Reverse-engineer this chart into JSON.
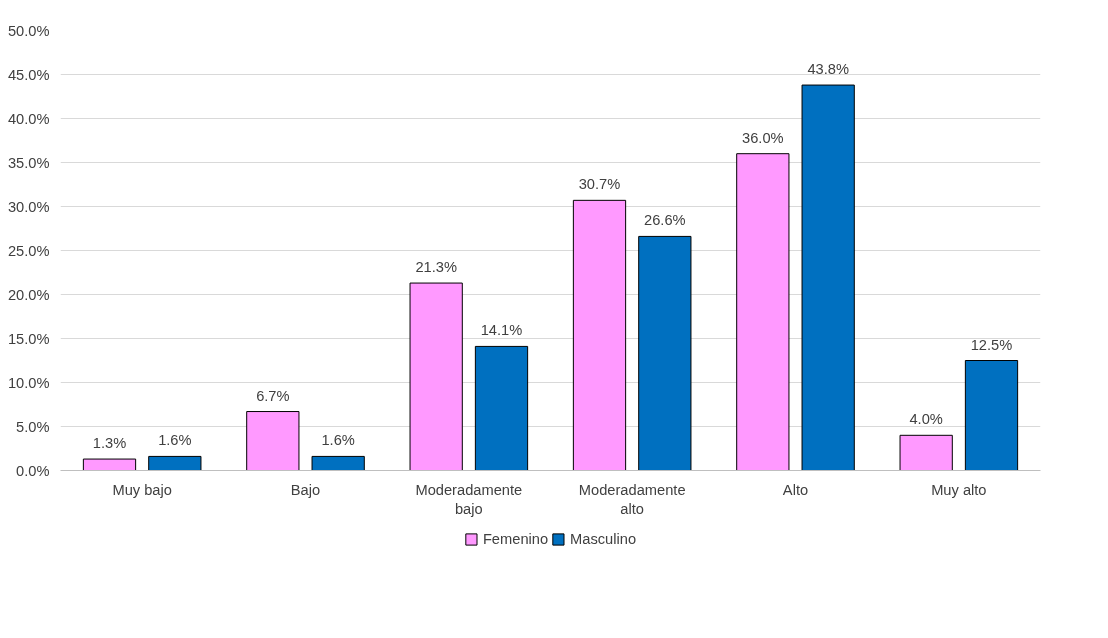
{
  "chart_data": {
    "type": "bar",
    "categories": [
      "Muy bajo",
      "Bajo",
      "Moderadamente bajo",
      "Moderadamente alto",
      "Alto",
      "Muy alto"
    ],
    "series": [
      {
        "name": "Femenino",
        "color": "#ff99ff",
        "values": [
          1.3,
          6.7,
          21.3,
          30.7,
          36.0,
          4.0
        ],
        "value_labels": [
          "1.3%",
          "6.7%",
          "21.3%",
          "30.7%",
          "36.0%",
          "4.0%"
        ]
      },
      {
        "name": "Masculino",
        "color": "#0070c0",
        "values": [
          1.6,
          1.6,
          14.1,
          26.6,
          43.8,
          12.5
        ],
        "value_labels": [
          "1.6%",
          "1.6%",
          "14.1%",
          "26.6%",
          "43.8%",
          "12.5%"
        ]
      }
    ],
    "ylim": [
      0,
      50
    ],
    "yticks": [
      {
        "value": 0,
        "label": "0.0%"
      },
      {
        "value": 5,
        "label": "5.0%"
      },
      {
        "value": 10,
        "label": "10.0%"
      },
      {
        "value": 15,
        "label": "15.0%"
      },
      {
        "value": 20,
        "label": "20.0%"
      },
      {
        "value": 25,
        "label": "25.0%"
      },
      {
        "value": 30,
        "label": "30.0%"
      },
      {
        "value": 35,
        "label": "35.0%"
      },
      {
        "value": 40,
        "label": "40.0%"
      },
      {
        "value": 45,
        "label": "45.0%"
      },
      {
        "value": 50,
        "label": "50.0%"
      }
    ],
    "grid": "y",
    "legend": "bottom"
  }
}
